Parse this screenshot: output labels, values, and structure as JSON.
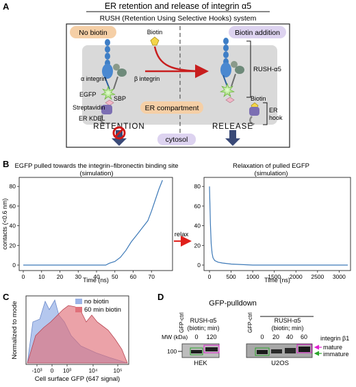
{
  "panel_a": {
    "letter": "A",
    "title": "ER retention and release of integrin α5",
    "subtitle": "RUSH (Retention Using Selective Hooks) system",
    "no_biotin": "No biotin",
    "biotin_addition": "Biotin addition",
    "biotin_top": "Biotin",
    "alpha_integrin": "α integrin",
    "beta_integrin": "β integrin",
    "egfp": "EGFP",
    "sbp": "SBP",
    "streptavidin": "Streptavidin",
    "er_kdel": "ER KDEL",
    "er_compartment": "ER compartment",
    "rush_a5": "RUSH-α5",
    "biotin_right": "Biotin",
    "er_hook_1": "ER",
    "er_hook_2": "hook",
    "retention": "RETENTION",
    "release": "RELEASE",
    "cytosol": "cytosol"
  },
  "panel_b": {
    "letter": "B",
    "relax_label": "relax",
    "accent_arrow": "#e0201b",
    "charts": [
      {
        "type": "line",
        "title_1": "EGFP pulled towards the integrin–fibronectin binding site",
        "title_2": "(simulation)",
        "xlabel": "Time (ns)",
        "ylabel": "contacts (<0.6 nm)",
        "xlim": [
          0,
          80
        ],
        "ylim": [
          0,
          85
        ],
        "xticks": [
          "0",
          "10",
          "20",
          "30",
          "40",
          "50",
          "60",
          "70"
        ],
        "yticks": [
          "0",
          "20",
          "40",
          "60",
          "80"
        ],
        "color": "#3b78b7",
        "series": [
          {
            "x": [
              0,
              20,
              40,
              45,
              47,
              50,
              53,
              56,
              59,
              62,
              65,
              68,
              70,
              72,
              74,
              76
            ],
            "values": [
              0,
              0,
              0,
              0,
              2,
              4,
              8,
              14,
              22,
              30,
              40,
              48,
              56,
              64,
              74,
              85
            ]
          }
        ]
      },
      {
        "type": "line",
        "title_1": "Relaxation of pulled EGFP",
        "title_2": "(simulation)",
        "xlabel": "Time (ns)",
        "ylabel": "",
        "xlim": [
          0,
          3200
        ],
        "ylim": [
          0,
          85
        ],
        "xticks": [
          "0",
          "500",
          "1000",
          "1500",
          "2000",
          "2500",
          "3000"
        ],
        "yticks": [
          "0",
          "20",
          "40",
          "60",
          "80"
        ],
        "color": "#3b78b7",
        "series": [
          {
            "x": [
              0,
              20,
              40,
              60,
              80,
              120,
              200,
              300,
              500,
              1000,
              2000,
              3200
            ],
            "values": [
              80,
              40,
              20,
              12,
              8,
              5,
              3,
              2,
              1,
              0,
              0,
              0
            ]
          }
        ]
      }
    ]
  },
  "panel_c": {
    "letter": "C",
    "chart_data": {
      "type": "area",
      "ylabel": "Normalized to mode",
      "xlabel": "Cell surface GFP (647 signal)",
      "xticks": [
        "-10³",
        "0",
        "10³",
        "10⁴",
        "10⁵"
      ],
      "series": [
        {
          "name": "no biotin",
          "color": "#9bb4e8"
        },
        {
          "name": "60 min biotin",
          "color": "#e0707a"
        }
      ]
    }
  },
  "panel_d": {
    "letter": "D",
    "title": "GFP-pulldown",
    "mw_label": "MW (kDa)",
    "mw_value": "100",
    "gfp_ctrl_1": "GFP-ctrl",
    "gfp_ctrl_2": "GFP-ctrl",
    "rush_hek_1": "RUSH-α5",
    "rush_hek_2": "(biotin; min)",
    "rush_u2os_1": "RUSH-α5",
    "rush_u2os_2": "(biotin; min)",
    "hek_lanes": [
      "0",
      "120"
    ],
    "u2os_lanes": [
      "0",
      "20",
      "40",
      "60"
    ],
    "hek": "HEK",
    "u2os": "U2OS",
    "integrin": "integrin β1",
    "mature": "mature",
    "immature": "immature",
    "mature_color": "#e020d0",
    "immature_color": "#2aa52a"
  }
}
